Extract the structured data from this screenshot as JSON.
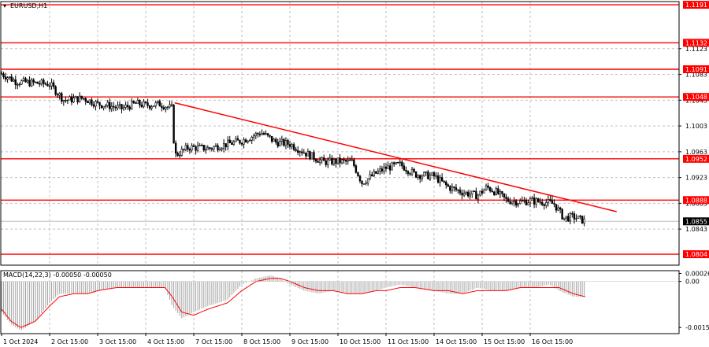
{
  "symbol_label": "EURUSD,H1",
  "macd_label": "MACD(14,22,3) -0.00050 -0.00050",
  "colors": {
    "background": "#ffffff",
    "grid": "#c0c0c0",
    "candle": "#000000",
    "level": "#ff0000",
    "trendline": "#ff0000",
    "macd_hist": "#a0a0a0",
    "macd_signal": "#ff0000",
    "current_price_line": "#c0c0c0"
  },
  "chart_data": [
    {
      "type": "candlestick",
      "title": "EURUSD,H1",
      "x_labels": [
        "1 Oct 2024",
        "2 Oct 15:00",
        "3 Oct 15:00",
        "4 Oct 15:00",
        "7 Oct 15:00",
        "8 Oct 15:00",
        "9 Oct 15:00",
        "10 Oct 15:00",
        "11 Oct 15:00",
        "14 Oct 15:00",
        "15 Oct 15:00",
        "16 Oct 15:00"
      ],
      "y_ticks": [
        "1.1123",
        "1.1083",
        "1.1043",
        "1.1003",
        "1.0963",
        "1.0923",
        "1.0883",
        "1.0843"
      ],
      "ylim": [
        1.0787,
        1.1196
      ],
      "grid": true,
      "levels": [
        {
          "value": 1.1191,
          "label": "1.1191"
        },
        {
          "value": 1.1132,
          "label": "1.1132"
        },
        {
          "value": 1.1091,
          "label": "1.1091"
        },
        {
          "value": 1.1048,
          "label": "1.1048"
        },
        {
          "value": 1.0952,
          "label": "1.0952"
        },
        {
          "value": 1.0888,
          "label": "1.0888"
        },
        {
          "value": 1.0804,
          "label": "1.0804"
        }
      ],
      "current_price": {
        "value": 1.0855,
        "label": "1.0855"
      },
      "trendline": [
        {
          "x_index": 3.6,
          "y": 1.1039
        },
        {
          "x_index": 12.8,
          "y": 1.087
        }
      ],
      "price_path": [
        [
          0.0,
          1.1084
        ],
        [
          0.3,
          1.1072
        ],
        [
          0.6,
          1.107
        ],
        [
          1.0,
          1.1068
        ],
        [
          1.3,
          1.1043
        ],
        [
          1.7,
          1.1046
        ],
        [
          2.0,
          1.1037
        ],
        [
          2.2,
          1.1035
        ],
        [
          2.5,
          1.103
        ],
        [
          2.8,
          1.1038
        ],
        [
          3.0,
          1.1035
        ],
        [
          3.3,
          1.1037
        ],
        [
          3.55,
          1.103
        ],
        [
          3.6,
          1.0957
        ],
        [
          3.9,
          1.097
        ],
        [
          4.3,
          1.0968
        ],
        [
          4.7,
          1.0975
        ],
        [
          5.0,
          1.098
        ],
        [
          5.4,
          1.0993
        ],
        [
          5.7,
          1.0978
        ],
        [
          6.0,
          1.0975
        ],
        [
          6.4,
          1.0958
        ],
        [
          6.7,
          1.0947
        ],
        [
          7.0,
          1.0948
        ],
        [
          7.3,
          1.0947
        ],
        [
          7.5,
          1.0915
        ],
        [
          7.8,
          1.093
        ],
        [
          8.0,
          1.0938
        ],
        [
          8.3,
          1.0943
        ],
        [
          8.6,
          1.0928
        ],
        [
          9.0,
          1.0925
        ],
        [
          9.3,
          1.0908
        ],
        [
          9.6,
          1.09
        ],
        [
          9.9,
          1.0895
        ],
        [
          10.1,
          1.0908
        ],
        [
          10.3,
          1.09
        ],
        [
          10.5,
          1.0888
        ],
        [
          10.8,
          1.0885
        ],
        [
          11.0,
          1.0887
        ],
        [
          11.3,
          1.0885
        ],
        [
          11.5,
          1.0882
        ],
        [
          11.7,
          1.086
        ],
        [
          11.9,
          1.0862
        ],
        [
          12.15,
          1.0855
        ]
      ]
    },
    {
      "type": "bar",
      "title": "MACD(14,22,3) -0.00050 -0.00050",
      "y_ticks": [
        "0.00026",
        "0.00",
        "-0.0015"
      ],
      "ylim": [
        -0.0017,
        0.00035
      ],
      "histogram": [
        [
          0.0,
          -0.001
        ],
        [
          0.2,
          -0.0014
        ],
        [
          0.4,
          -0.0016
        ],
        [
          0.7,
          -0.0013
        ],
        [
          1.0,
          -0.0007
        ],
        [
          1.2,
          -0.0004
        ],
        [
          1.5,
          -0.0004
        ],
        [
          1.8,
          -0.0004
        ],
        [
          2.0,
          -0.0003
        ],
        [
          2.4,
          -0.0002
        ],
        [
          2.7,
          -0.0002
        ],
        [
          3.0,
          -0.0002
        ],
        [
          3.4,
          -0.0002
        ],
        [
          3.55,
          -0.0008
        ],
        [
          3.75,
          -0.0012
        ],
        [
          4.0,
          -0.001
        ],
        [
          4.3,
          -0.0008
        ],
        [
          4.7,
          -0.0006
        ],
        [
          5.0,
          -0.0001
        ],
        [
          5.3,
          0.0001
        ],
        [
          5.6,
          0.0002
        ],
        [
          5.8,
          0.0001
        ],
        [
          6.0,
          -0.0001
        ],
        [
          6.3,
          -0.0003
        ],
        [
          6.6,
          -0.0004
        ],
        [
          6.9,
          -0.0003
        ],
        [
          7.2,
          -0.0004
        ],
        [
          7.5,
          -0.0004
        ],
        [
          7.8,
          -0.0003
        ],
        [
          8.0,
          -0.0002
        ],
        [
          8.3,
          -0.0001
        ],
        [
          8.6,
          -0.0002
        ],
        [
          9.0,
          -0.0003
        ],
        [
          9.3,
          -0.0004
        ],
        [
          9.6,
          -0.0004
        ],
        [
          9.9,
          -0.0002
        ],
        [
          10.2,
          -0.0003
        ],
        [
          10.5,
          -0.0003
        ],
        [
          10.8,
          -0.0002
        ],
        [
          11.1,
          -0.0002
        ],
        [
          11.4,
          -0.0001
        ],
        [
          11.6,
          -0.0003
        ],
        [
          11.9,
          -0.0005
        ],
        [
          12.15,
          -0.0005
        ]
      ],
      "signal": [
        [
          0.0,
          -0.0009
        ],
        [
          0.2,
          -0.0013
        ],
        [
          0.4,
          -0.0015
        ],
        [
          0.7,
          -0.0013
        ],
        [
          1.0,
          -0.0008
        ],
        [
          1.2,
          -0.0005
        ],
        [
          1.5,
          -0.0004
        ],
        [
          1.8,
          -0.0004
        ],
        [
          2.0,
          -0.0003
        ],
        [
          2.4,
          -0.0002
        ],
        [
          2.7,
          -0.0002
        ],
        [
          3.0,
          -0.0002
        ],
        [
          3.4,
          -0.0002
        ],
        [
          3.55,
          -0.0005
        ],
        [
          3.75,
          -0.001
        ],
        [
          4.0,
          -0.0011
        ],
        [
          4.3,
          -0.0009
        ],
        [
          4.7,
          -0.0007
        ],
        [
          5.0,
          -0.0003
        ],
        [
          5.3,
          0.0
        ],
        [
          5.6,
          0.0001
        ],
        [
          5.8,
          0.0001
        ],
        [
          6.0,
          0.0
        ],
        [
          6.3,
          -0.0002
        ],
        [
          6.6,
          -0.0003
        ],
        [
          6.9,
          -0.0003
        ],
        [
          7.2,
          -0.0004
        ],
        [
          7.5,
          -0.0004
        ],
        [
          7.8,
          -0.0003
        ],
        [
          8.0,
          -0.0003
        ],
        [
          8.3,
          -0.0002
        ],
        [
          8.6,
          -0.0002
        ],
        [
          9.0,
          -0.0003
        ],
        [
          9.3,
          -0.0003
        ],
        [
          9.6,
          -0.0004
        ],
        [
          9.9,
          -0.0003
        ],
        [
          10.2,
          -0.0003
        ],
        [
          10.5,
          -0.0003
        ],
        [
          10.8,
          -0.0002
        ],
        [
          11.1,
          -0.0002
        ],
        [
          11.4,
          -0.0002
        ],
        [
          11.6,
          -0.0002
        ],
        [
          11.9,
          -0.0004
        ],
        [
          12.15,
          -0.0005
        ]
      ]
    }
  ]
}
